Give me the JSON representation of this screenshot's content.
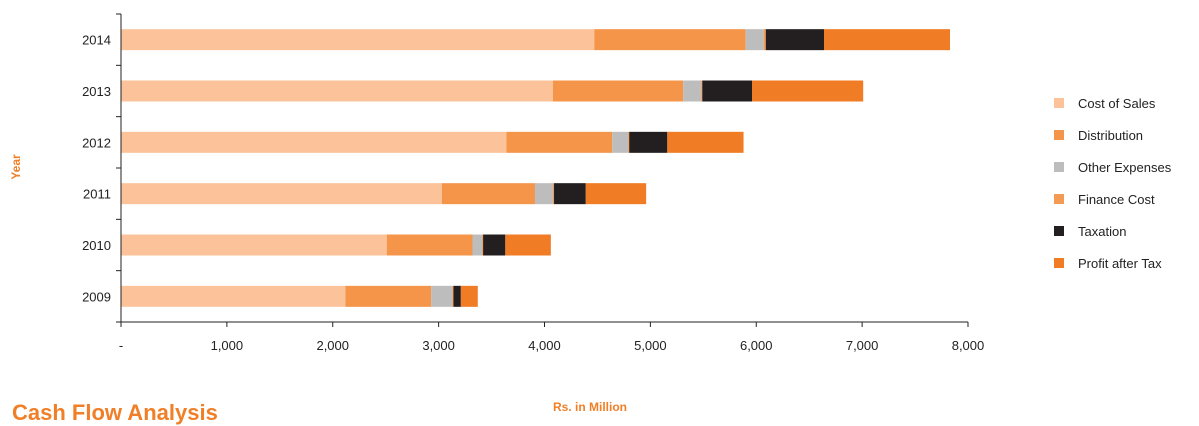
{
  "chart_data": {
    "type": "bar",
    "orientation": "horizontal",
    "stacked": true,
    "categories": [
      "2014",
      "2013",
      "2012",
      "2011",
      "2010",
      "2009"
    ],
    "series": [
      {
        "name": "Cost of Sales",
        "color": "#fcc39b",
        "values": [
          4470,
          4080,
          3640,
          3030,
          2510,
          2120
        ]
      },
      {
        "name": "Distribution",
        "color": "#f5954a",
        "values": [
          1430,
          1230,
          1000,
          880,
          810,
          810
        ]
      },
      {
        "name": "Other Expenses",
        "color": "#bdbdbd",
        "values": [
          170,
          170,
          150,
          170,
          90,
          200
        ]
      },
      {
        "name": "Finance Cost",
        "color": "#f39b55",
        "values": [
          20,
          10,
          10,
          10,
          10,
          10
        ]
      },
      {
        "name": "Taxation",
        "color": "#231f20",
        "values": [
          550,
          470,
          360,
          300,
          210,
          70
        ]
      },
      {
        "name": "Profit after Tax",
        "color": "#f07d26",
        "values": [
          1190,
          1050,
          720,
          570,
          430,
          160
        ]
      }
    ],
    "x_ticks": [
      "-",
      "1,000",
      "2,000",
      "3,000",
      "4,000",
      "5,000",
      "6,000",
      "7,000",
      "8,000"
    ],
    "xlim": [
      0,
      8000
    ],
    "xlabel": "Rs. in Million",
    "ylabel": "Year",
    "grid": false,
    "legend_position": "right"
  },
  "section_heading": "Cash Flow Analysis"
}
